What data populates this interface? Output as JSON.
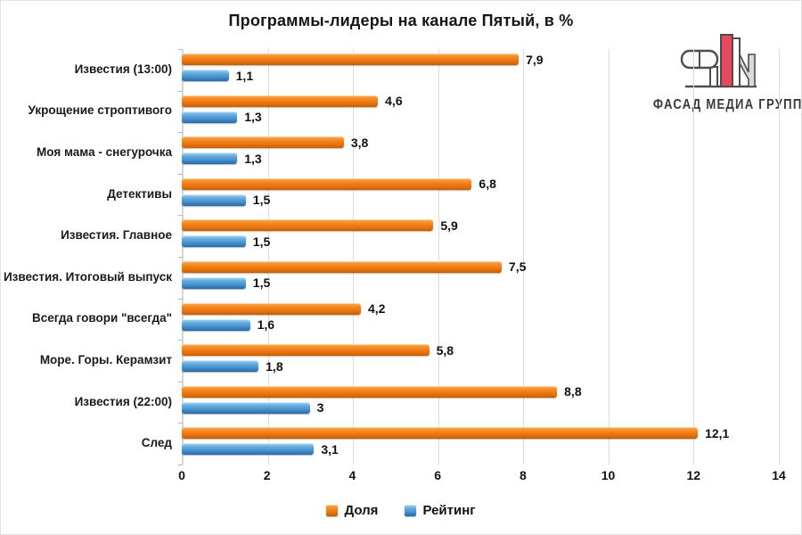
{
  "title": "Программы-лидеры на канале Пятый, в %",
  "logo": {
    "text": "ФАСАД МЕДИА ГРУПП",
    "accent_color": "#e8495c",
    "line_color": "#4d4d4d",
    "gray_fill": "#d9d9d9"
  },
  "chart_data": {
    "type": "bar",
    "orientation": "horizontal",
    "title": "Программы-лидеры на канале Пятый, в %",
    "categories": [
      "Известия (13:00)",
      "Укрощение строптивого",
      "Моя мама - снегурочка",
      "Детективы",
      "Известия. Главное",
      "Известия. Итоговый выпуск",
      "Всегда говори \"всегда\"",
      "Море. Горы. Керамзит",
      "Известия (22:00)",
      "След"
    ],
    "series": [
      {
        "name": "Доля",
        "color": "#EE7A12",
        "values": [
          7.9,
          4.6,
          3.8,
          6.8,
          5.9,
          7.5,
          4.2,
          5.8,
          8.8,
          12.1
        ],
        "labels": [
          "7,9",
          "4,6",
          "3,8",
          "6,8",
          "5,9",
          "7,5",
          "4,2",
          "5,8",
          "8,8",
          "12,1"
        ]
      },
      {
        "name": "Рейтинг",
        "color": "#4A97D2",
        "values": [
          1.1,
          1.3,
          1.3,
          1.5,
          1.5,
          1.5,
          1.6,
          1.8,
          3,
          3.1
        ],
        "labels": [
          "1,1",
          "1,3",
          "1,3",
          "1,5",
          "1,5",
          "1,5",
          "1,6",
          "1,8",
          "3",
          "3,1"
        ]
      }
    ],
    "xlim": [
      0,
      14
    ],
    "xticks": [
      "0",
      "2",
      "4",
      "6",
      "8",
      "10",
      "12",
      "14"
    ],
    "grid": true,
    "legend_position": "bottom"
  }
}
